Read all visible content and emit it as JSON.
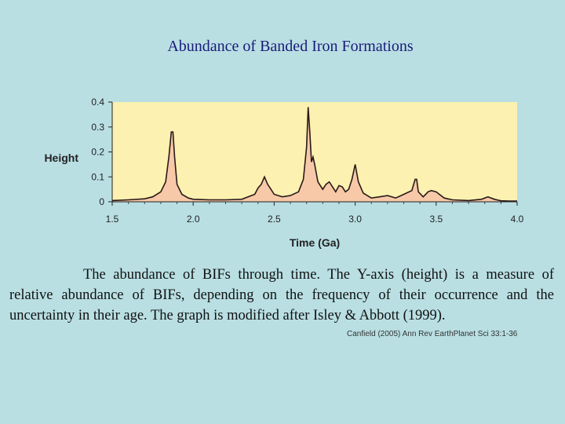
{
  "slide": {
    "title": "Abundance of Banded Iron Formations",
    "caption": "The abundance of BIFs through time. The Y-axis (height) is a measure of relative abundance of BIFs, depending on the frequency of their occurrence and the uncertainty in their age. The graph is modified after Isley & Abbott (1999).",
    "citation": "Canfield (2005) Ann Rev EarthPlanet Sci 33:1-36"
  },
  "colors": {
    "background": "#b9dfe3",
    "plot_area": "#fcf1b0",
    "fill": "#f7c9a8",
    "line": "#2a1a1a",
    "title": "#1a1a7a"
  },
  "chart_data": {
    "type": "area",
    "title": "",
    "xlabel": "Time (Ga)",
    "ylabel": "Height",
    "xlim": [
      1.5,
      4.0
    ],
    "ylim": [
      0,
      0.4
    ],
    "x_ticks": [
      "1.5",
      "2.0",
      "2.5",
      "3.0",
      "3.5",
      "4.0"
    ],
    "y_ticks": [
      "0",
      "0.1",
      "0.2",
      "0.3",
      "0.4"
    ],
    "grid": false,
    "series": [
      {
        "x": [
          1.5,
          1.6,
          1.7,
          1.75,
          1.8,
          1.83,
          1.85,
          1.865,
          1.875,
          1.885,
          1.9,
          1.93,
          1.97,
          2.0,
          2.1,
          2.2,
          2.3,
          2.38,
          2.4,
          2.42,
          2.44,
          2.46,
          2.48,
          2.5,
          2.55,
          2.6,
          2.65,
          2.68,
          2.7,
          2.71,
          2.72,
          2.73,
          2.74,
          2.75,
          2.77,
          2.8,
          2.82,
          2.84,
          2.86,
          2.88,
          2.9,
          2.92,
          2.94,
          2.96,
          2.98,
          3.0,
          3.02,
          3.05,
          3.1,
          3.15,
          3.2,
          3.25,
          3.3,
          3.35,
          3.37,
          3.38,
          3.39,
          3.42,
          3.45,
          3.47,
          3.5,
          3.52,
          3.55,
          3.6,
          3.7,
          3.78,
          3.82,
          3.86,
          3.9,
          3.95,
          4.0
        ],
        "y": [
          0.005,
          0.008,
          0.012,
          0.02,
          0.04,
          0.08,
          0.18,
          0.28,
          0.28,
          0.18,
          0.07,
          0.03,
          0.015,
          0.01,
          0.008,
          0.008,
          0.01,
          0.03,
          0.055,
          0.07,
          0.1,
          0.07,
          0.05,
          0.03,
          0.02,
          0.025,
          0.04,
          0.09,
          0.22,
          0.38,
          0.28,
          0.16,
          0.18,
          0.15,
          0.08,
          0.05,
          0.07,
          0.08,
          0.06,
          0.04,
          0.065,
          0.06,
          0.04,
          0.05,
          0.09,
          0.15,
          0.08,
          0.035,
          0.015,
          0.02,
          0.025,
          0.015,
          0.03,
          0.045,
          0.09,
          0.09,
          0.04,
          0.02,
          0.04,
          0.045,
          0.04,
          0.03,
          0.015,
          0.008,
          0.005,
          0.01,
          0.02,
          0.01,
          0.004,
          0.003,
          0.003
        ]
      }
    ]
  }
}
